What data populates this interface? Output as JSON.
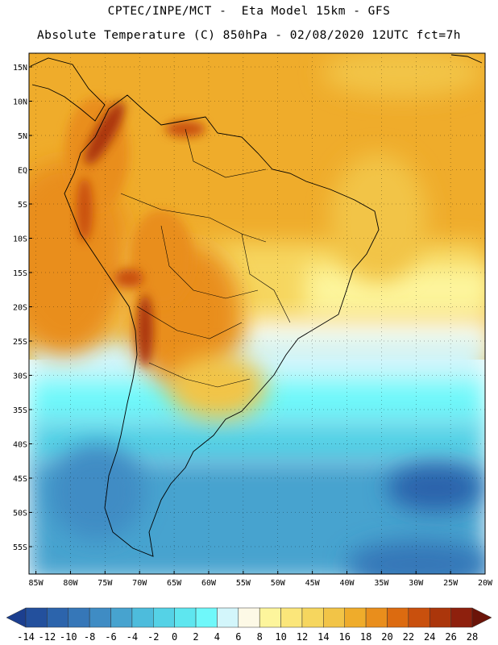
{
  "header": {
    "line1": "CPTEC/INPE/MCT -  Eta Model 15km - GFS",
    "line2": "Absolute Temperature (C) 850hPa - 02/08/2020 12UTC fct=7h"
  },
  "map": {
    "lat_range": [
      17,
      -59
    ],
    "lon_range": [
      -86,
      -20
    ],
    "lat_ticks": [
      "15N",
      "10N",
      "5N",
      "EQ",
      "5S",
      "10S",
      "15S",
      "20S",
      "25S",
      "30S",
      "35S",
      "40S",
      "45S",
      "50S",
      "55S"
    ],
    "lat_values": [
      15,
      10,
      5,
      0,
      -5,
      -10,
      -15,
      -20,
      -25,
      -30,
      -35,
      -40,
      -45,
      -50,
      -55
    ],
    "lon_ticks": [
      "85W",
      "80W",
      "75W",
      "70W",
      "65W",
      "60W",
      "55W",
      "50W",
      "45W",
      "40W",
      "35W",
      "30W",
      "25W",
      "20W"
    ],
    "lon_values": [
      -85,
      -80,
      -75,
      -70,
      -65,
      -60,
      -55,
      -50,
      -45,
      -40,
      -35,
      -30,
      -25,
      -20
    ],
    "grid": true,
    "units": "C",
    "level": "850hPa"
  },
  "colorbar": {
    "labels": [
      "-14",
      "-12",
      "-10",
      "-8",
      "-6",
      "-4",
      "-2",
      "0",
      "2",
      "4",
      "6",
      "8",
      "10",
      "12",
      "14",
      "16",
      "18",
      "20",
      "22",
      "24",
      "26",
      "28"
    ],
    "colors": [
      "#1c3f8f",
      "#23509d",
      "#2c64ac",
      "#3677b8",
      "#3f8cc4",
      "#47a3cf",
      "#4dbcdc",
      "#55d2e6",
      "#5ee6ef",
      "#6ff8fa",
      "#d3f6fb",
      "#fdf9e6",
      "#fdf59c",
      "#fbe67a",
      "#f6d65e",
      "#f2c447",
      "#efac2b",
      "#e98e1c",
      "#dc6b10",
      "#c9500d",
      "#ab360b",
      "#8e200d",
      "#6b1409"
    ]
  }
}
